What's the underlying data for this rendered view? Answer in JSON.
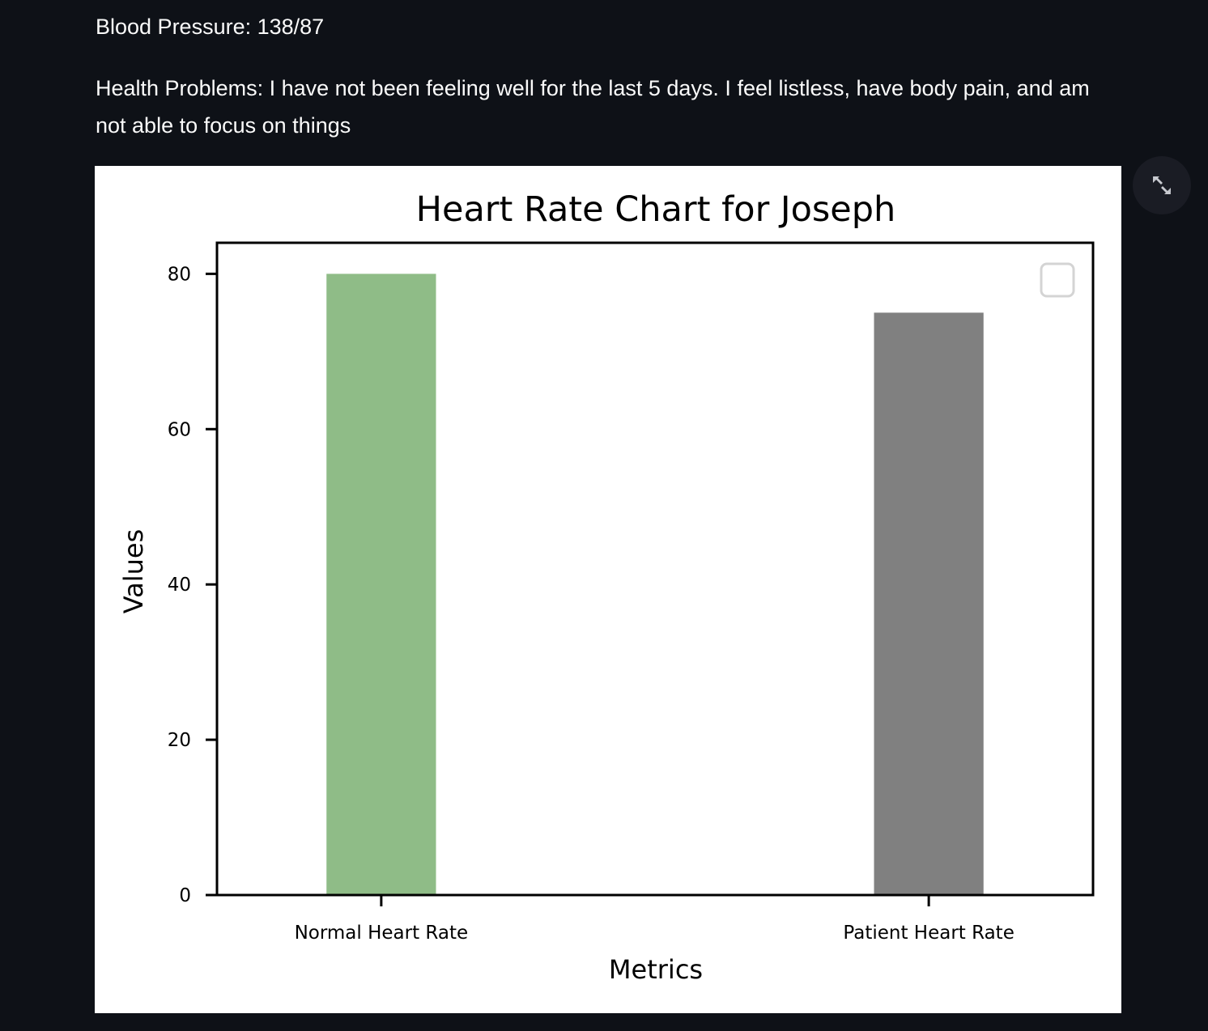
{
  "patient_info": {
    "blood_pressure": "Blood Pressure: 138/87",
    "health_problems": "Health Problems: I have not been feeling well for the last 5 days. I feel listless, have body pain, and am not able to focus on things"
  },
  "toolbar": {
    "fullscreen_icon": "expand-arrows-icon"
  },
  "chart_data": {
    "type": "bar",
    "title": "Heart Rate Chart for Joseph",
    "xlabel": "Metrics",
    "ylabel": "Values",
    "categories": [
      "Normal Heart Rate",
      "Patient Heart Rate"
    ],
    "values": [
      80,
      75
    ],
    "colors": [
      "#8fbc87",
      "#808080"
    ],
    "ylim": [
      0,
      84
    ],
    "yticks": [
      0,
      20,
      40,
      60,
      80
    ],
    "grid": false,
    "legend": "top-right",
    "legend_entries": []
  }
}
